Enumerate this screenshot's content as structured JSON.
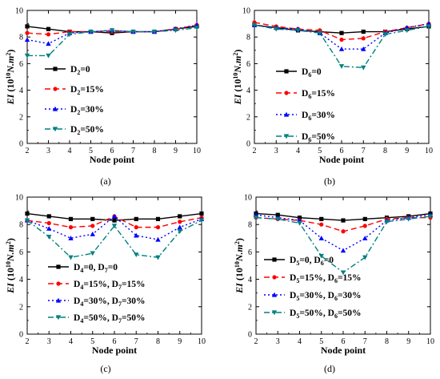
{
  "chart_data": [
    {
      "type": "line",
      "caption": "(a)",
      "xlabel": "Node point",
      "ylabel": [
        "EI",
        "(10",
        "10",
        "N.m",
        "2",
        ")"
      ],
      "xlim": [
        2,
        10
      ],
      "ylim": [
        0,
        10
      ],
      "xticks": [
        2,
        3,
        4,
        5,
        6,
        7,
        8,
        9,
        10
      ],
      "yticks": [
        0,
        2,
        4,
        6,
        8,
        10
      ],
      "x": [
        2,
        3,
        4,
        5,
        6,
        7,
        8,
        9,
        10
      ],
      "series": [
        {
          "legend": [
            [
              "D",
              "2",
              "=0"
            ]
          ],
          "color": "#000000",
          "dash": "",
          "marker": "square",
          "values": [
            8.8,
            8.6,
            8.4,
            8.4,
            8.3,
            8.4,
            8.4,
            8.6,
            8.8
          ]
        },
        {
          "legend": [
            [
              "D",
              "2",
              "=15%"
            ]
          ],
          "color": "#ff0000",
          "dash": "7,4",
          "marker": "circle",
          "values": [
            8.3,
            8.2,
            8.4,
            8.4,
            8.4,
            8.4,
            8.4,
            8.6,
            8.9
          ]
        },
        {
          "legend": [
            [
              "D",
              "2",
              "=30%"
            ]
          ],
          "color": "#0000ff",
          "dash": "2,3",
          "marker": "triangle",
          "values": [
            7.8,
            7.5,
            8.3,
            8.4,
            8.5,
            8.4,
            8.4,
            8.6,
            8.9
          ]
        },
        {
          "legend": [
            [
              "D",
              "2",
              "=50%"
            ]
          ],
          "color": "#008080",
          "dash": "7,3,2,3",
          "marker": "triangle-down",
          "values": [
            6.6,
            6.6,
            8.2,
            8.4,
            8.5,
            8.4,
            8.4,
            8.5,
            8.7
          ]
        }
      ]
    },
    {
      "type": "line",
      "caption": "(b)",
      "xlabel": "Node point",
      "ylabel": [
        "EI",
        "(10",
        "10",
        "N.m",
        "2",
        ")"
      ],
      "xlim": [
        2,
        10
      ],
      "ylim": [
        0,
        10
      ],
      "xticks": [
        2,
        3,
        4,
        5,
        6,
        7,
        8,
        9,
        10
      ],
      "yticks": [
        0,
        2,
        4,
        6,
        8,
        10
      ],
      "x": [
        2,
        3,
        4,
        5,
        6,
        7,
        8,
        9,
        10
      ],
      "series": [
        {
          "legend": [
            [
              "D",
              "6",
              "=0"
            ]
          ],
          "color": "#000000",
          "dash": "",
          "marker": "square",
          "values": [
            8.9,
            8.7,
            8.5,
            8.4,
            8.3,
            8.4,
            8.4,
            8.6,
            8.8
          ]
        },
        {
          "legend": [
            [
              "D",
              "6",
              "=15%"
            ]
          ],
          "color": "#ff0000",
          "dash": "7,4",
          "marker": "circle",
          "values": [
            9.1,
            8.8,
            8.6,
            8.5,
            7.8,
            7.9,
            8.4,
            8.7,
            9.0
          ]
        },
        {
          "legend": [
            [
              "D",
              "6",
              "=30%"
            ]
          ],
          "color": "#0000ff",
          "dash": "2,3",
          "marker": "triangle",
          "values": [
            8.9,
            8.7,
            8.6,
            8.3,
            7.1,
            7.1,
            8.3,
            8.7,
            9.0
          ]
        },
        {
          "legend": [
            [
              "D",
              "6",
              "=50%"
            ]
          ],
          "color": "#008080",
          "dash": "7,3,2,3",
          "marker": "triangle-down",
          "values": [
            8.9,
            8.6,
            8.5,
            8.3,
            5.8,
            5.7,
            8.2,
            8.5,
            8.8
          ]
        }
      ]
    },
    {
      "type": "line",
      "caption": "(c)",
      "xlabel": "Node point",
      "ylabel": [
        "EI",
        "(10",
        "10",
        "N.m",
        "2",
        ")"
      ],
      "xlim": [
        2,
        10
      ],
      "ylim": [
        0,
        10
      ],
      "xticks": [
        2,
        3,
        4,
        5,
        6,
        7,
        8,
        9,
        10
      ],
      "yticks": [
        0,
        2,
        4,
        6,
        8,
        10
      ],
      "x": [
        2,
        3,
        4,
        5,
        6,
        7,
        8,
        9,
        10
      ],
      "series": [
        {
          "legend": [
            [
              "D",
              "4",
              "=0, "
            ],
            [
              "D",
              "7",
              "=0"
            ]
          ],
          "color": "#000000",
          "dash": "",
          "marker": "square",
          "values": [
            8.8,
            8.6,
            8.4,
            8.4,
            8.3,
            8.4,
            8.4,
            8.6,
            8.8
          ]
        },
        {
          "legend": [
            [
              "D",
              "4",
              "=15%, "
            ],
            [
              "D",
              "7",
              "=15%"
            ]
          ],
          "color": "#ff0000",
          "dash": "7,4",
          "marker": "circle",
          "values": [
            8.3,
            8.1,
            7.8,
            7.9,
            8.6,
            7.8,
            7.8,
            8.2,
            8.5
          ]
        },
        {
          "legend": [
            [
              "D",
              "4",
              "=30%, "
            ],
            [
              "D",
              "7",
              "=30%"
            ]
          ],
          "color": "#0000ff",
          "dash": "2,3",
          "marker": "triangle",
          "values": [
            8.3,
            7.7,
            7.0,
            7.3,
            8.6,
            7.2,
            6.9,
            7.8,
            8.4
          ]
        },
        {
          "legend": [
            [
              "D",
              "4",
              "=50%, "
            ],
            [
              "D",
              "7",
              "=50%"
            ]
          ],
          "color": "#008080",
          "dash": "7,3,2,3",
          "marker": "triangle-down",
          "values": [
            8.3,
            7.1,
            5.6,
            5.9,
            7.9,
            5.8,
            5.6,
            7.5,
            8.3
          ]
        }
      ]
    },
    {
      "type": "line",
      "caption": "(d)",
      "xlabel": "Node point",
      "ylabel": [
        "EI",
        "(10",
        "10",
        "N.m",
        "2",
        ")"
      ],
      "xlim": [
        2,
        10
      ],
      "ylim": [
        0,
        10
      ],
      "xticks": [
        2,
        3,
        4,
        5,
        6,
        7,
        8,
        9,
        10
      ],
      "yticks": [
        0,
        2,
        4,
        6,
        8,
        10
      ],
      "x": [
        2,
        3,
        4,
        5,
        6,
        7,
        8,
        9,
        10
      ],
      "series": [
        {
          "legend": [
            [
              "D",
              "5",
              "=0, "
            ],
            [
              "D",
              "6",
              "=0"
            ]
          ],
          "color": "#000000",
          "dash": "",
          "marker": "square",
          "values": [
            8.8,
            8.7,
            8.5,
            8.4,
            8.3,
            8.4,
            8.5,
            8.6,
            8.8
          ]
        },
        {
          "legend": [
            [
              "D",
              "5",
              "=15%, "
            ],
            [
              "D",
              "6",
              "=15%"
            ]
          ],
          "color": "#ff0000",
          "dash": "7,4",
          "marker": "circle",
          "values": [
            8.5,
            8.4,
            8.3,
            8.0,
            7.5,
            7.9,
            8.4,
            8.5,
            8.5
          ]
        },
        {
          "legend": [
            [
              "D",
              "5",
              "=30%, "
            ],
            [
              "D",
              "6",
              "=30%"
            ]
          ],
          "color": "#0000ff",
          "dash": "2,3",
          "marker": "triangle",
          "values": [
            8.7,
            8.5,
            8.3,
            7.0,
            6.1,
            7.0,
            8.3,
            8.5,
            8.7
          ]
        },
        {
          "legend": [
            [
              "D",
              "5",
              "=50%, "
            ],
            [
              "D",
              "6",
              "=50%"
            ]
          ],
          "color": "#008080",
          "dash": "7,3,2,3",
          "marker": "triangle-down",
          "values": [
            8.5,
            8.4,
            8.1,
            5.7,
            4.5,
            5.6,
            8.2,
            8.4,
            8.6
          ]
        }
      ]
    }
  ]
}
